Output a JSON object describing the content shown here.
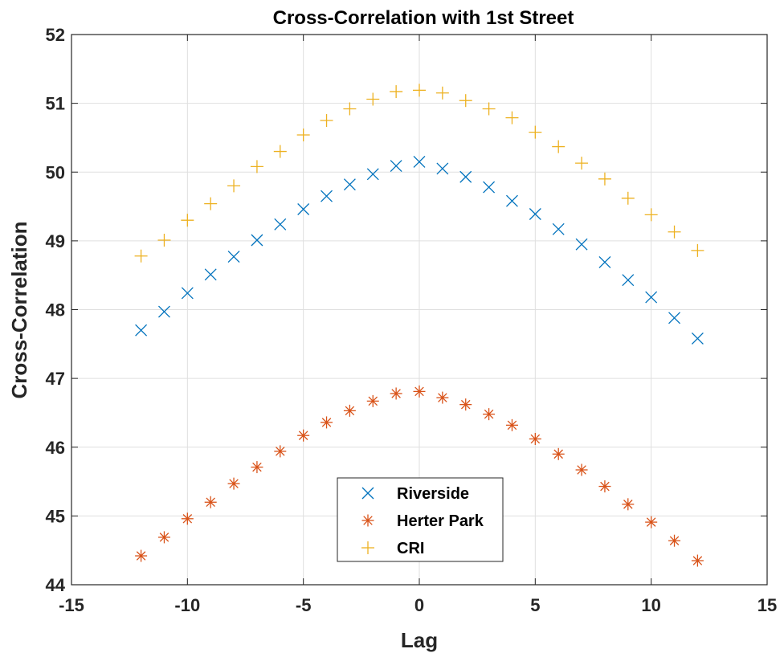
{
  "chart_data": {
    "type": "scatter",
    "title": "Cross-Correlation with 1st Street",
    "xlabel": "Lag",
    "ylabel": "Cross-Correlation",
    "xlim": [
      -15,
      15
    ],
    "ylim": [
      44,
      52
    ],
    "xticks": [
      -15,
      -10,
      -5,
      0,
      5,
      10,
      15
    ],
    "yticks": [
      44,
      45,
      46,
      47,
      48,
      49,
      50,
      51,
      52
    ],
    "grid": true,
    "legend_position": "bottom-center",
    "x": [
      -12,
      -11,
      -10,
      -9,
      -8,
      -7,
      -6,
      -5,
      -4,
      -3,
      -2,
      -1,
      0,
      1,
      2,
      3,
      4,
      5,
      6,
      7,
      8,
      9,
      10,
      11,
      12
    ],
    "series": [
      {
        "name": "Riverside",
        "marker": "x",
        "color": "#0072BD",
        "values": [
          47.7,
          47.97,
          48.24,
          48.51,
          48.77,
          49.01,
          49.24,
          49.46,
          49.65,
          49.82,
          49.97,
          50.09,
          50.15,
          50.05,
          49.93,
          49.78,
          49.58,
          49.39,
          49.17,
          48.95,
          48.69,
          48.43,
          48.18,
          47.88,
          47.58
        ]
      },
      {
        "name": "Herter Park",
        "marker": "asterisk",
        "color": "#D95319",
        "values": [
          44.42,
          44.69,
          44.96,
          45.2,
          45.47,
          45.71,
          45.94,
          46.17,
          46.36,
          46.53,
          46.67,
          46.78,
          46.81,
          46.72,
          46.62,
          46.48,
          46.32,
          46.12,
          45.9,
          45.67,
          45.43,
          45.17,
          44.91,
          44.64,
          44.35
        ]
      },
      {
        "name": "CRI",
        "marker": "plus",
        "color": "#EDB120",
        "values": [
          48.78,
          49.01,
          49.3,
          49.54,
          49.8,
          50.08,
          50.3,
          50.54,
          50.75,
          50.92,
          51.06,
          51.17,
          51.19,
          51.15,
          51.04,
          50.92,
          50.79,
          50.58,
          50.37,
          50.13,
          49.9,
          49.62,
          49.38,
          49.13,
          48.86
        ]
      }
    ]
  }
}
